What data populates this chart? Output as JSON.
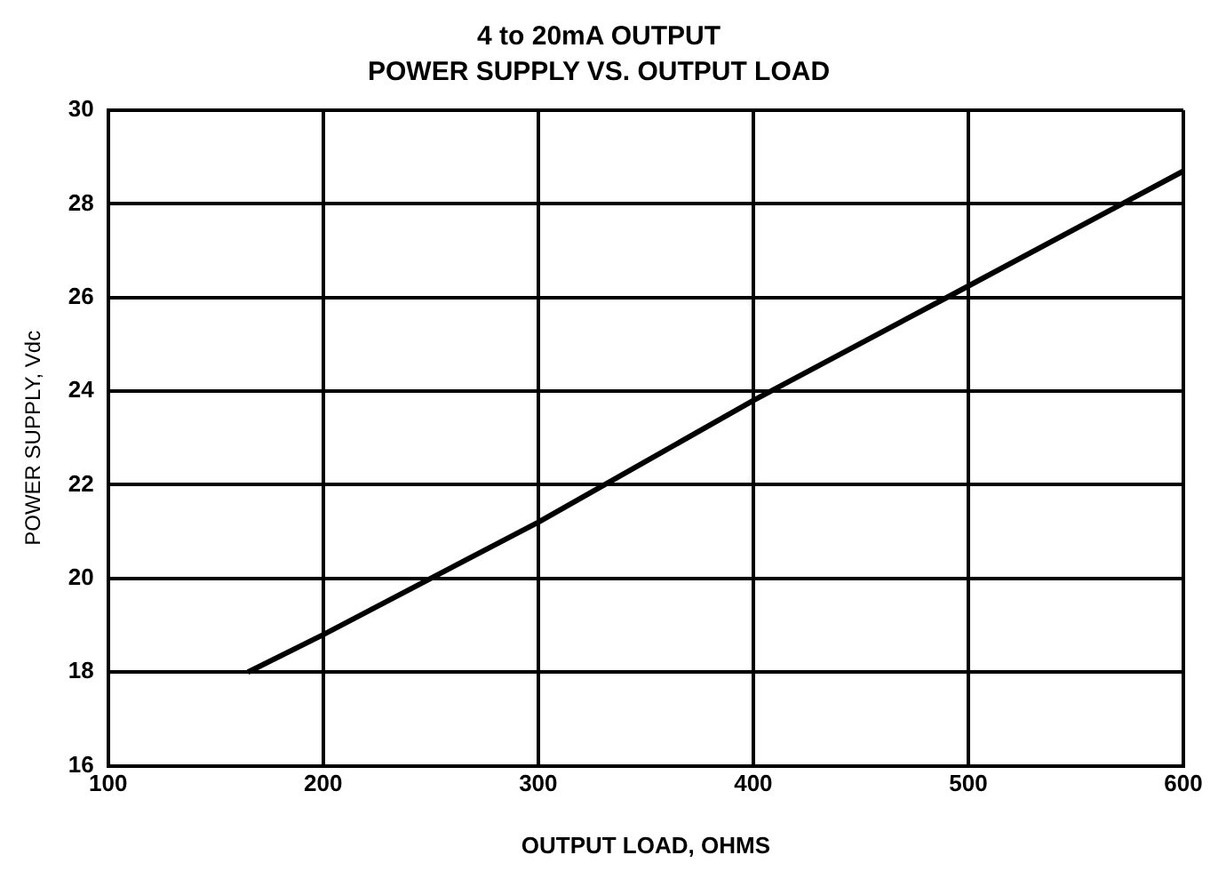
{
  "chart_data": {
    "type": "line",
    "title": "4 to 20mA OUTPUT",
    "subtitle": "POWER SUPPLY VS. OUTPUT LOAD",
    "xlabel": "OUTPUT LOAD, OHMS",
    "ylabel": "POWER SUPPLY, Vdc",
    "x": [
      165,
      200,
      300,
      400,
      490,
      600
    ],
    "series": [
      {
        "color": "#000000",
        "values": [
          18.0,
          18.8,
          21.2,
          23.8,
          26.0,
          28.7
        ]
      }
    ],
    "xlim": [
      100,
      600
    ],
    "xticks": [
      100,
      200,
      300,
      400,
      500,
      600
    ],
    "ylim": [
      16,
      30
    ],
    "yticks": [
      16,
      18,
      20,
      22,
      24,
      26,
      28,
      30
    ],
    "grid": true,
    "legend": false,
    "marker": "none",
    "line_style": "solid"
  }
}
